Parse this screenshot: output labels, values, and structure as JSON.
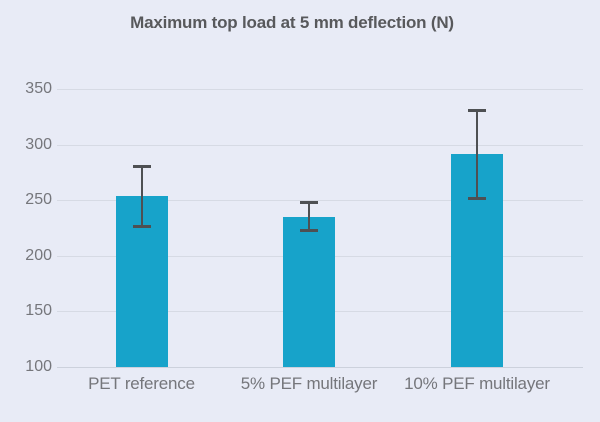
{
  "title": "Maximum top load at 5 mm deflection (N)",
  "colors": {
    "background": "#e8ebf6",
    "bar": "#17a3ca",
    "gridline": "#d6dae4",
    "baseline": "#ccd1dc",
    "error_bar": "#4e5053",
    "tick_text": "#75767b",
    "title_text": "#58595c"
  },
  "chart_data": {
    "type": "bar",
    "title": "Maximum top load at 5 mm deflection (N)",
    "categories": [
      "PET reference",
      "5% PEF multilayer",
      "10% PEF multilayer"
    ],
    "values": [
      254,
      235,
      292
    ],
    "error_low": [
      225,
      221,
      250
    ],
    "error_high": [
      282,
      249,
      332
    ],
    "xlabel": "",
    "ylabel": "",
    "ylim": [
      100,
      350
    ],
    "yticks": [
      100,
      150,
      200,
      250,
      300,
      350
    ],
    "grid": true,
    "legend": false,
    "bar_color": "#17a3ca",
    "error_bar_color": "#4e5053"
  }
}
